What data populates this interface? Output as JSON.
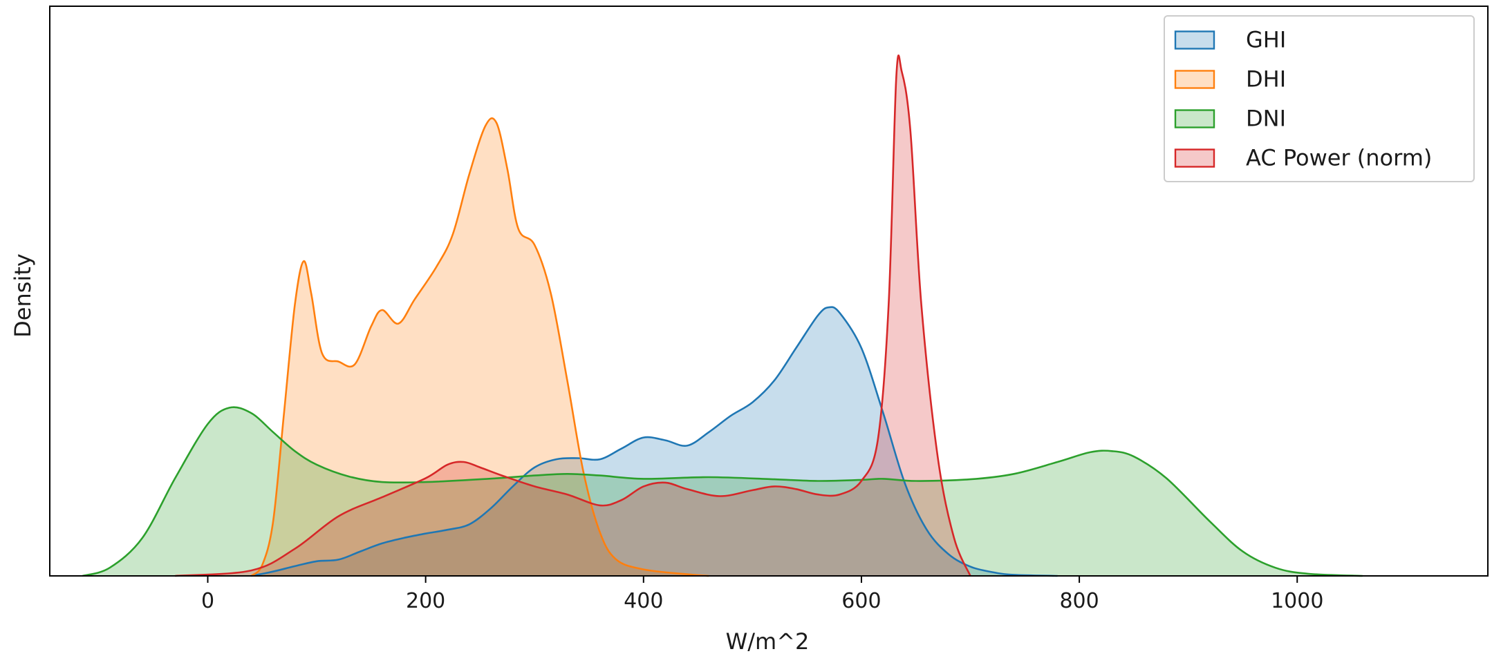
{
  "chart_data": {
    "type": "area",
    "subtype": "kde",
    "title": "",
    "xlabel": "W/m^2",
    "ylabel": "Density",
    "xlim": [
      -145,
      1175
    ],
    "ylim": [
      0,
      1.05
    ],
    "x_ticks": [
      0,
      200,
      400,
      600,
      800,
      1000
    ],
    "x_tick_labels": [
      "0",
      "200",
      "400",
      "600",
      "800",
      "1000"
    ],
    "y_ticks_visible": false,
    "grid": false,
    "legend_position": "top-right",
    "fill_alpha": 0.25,
    "series": [
      {
        "name": "GHI",
        "color": "#1f77b4",
        "points": [
          [
            40,
            0
          ],
          [
            60,
            0.008
          ],
          [
            80,
            0.018
          ],
          [
            100,
            0.027
          ],
          [
            120,
            0.03
          ],
          [
            140,
            0.045
          ],
          [
            160,
            0.06
          ],
          [
            180,
            0.07
          ],
          [
            200,
            0.078
          ],
          [
            220,
            0.085
          ],
          [
            240,
            0.095
          ],
          [
            260,
            0.125
          ],
          [
            280,
            0.165
          ],
          [
            300,
            0.2
          ],
          [
            320,
            0.215
          ],
          [
            340,
            0.217
          ],
          [
            360,
            0.215
          ],
          [
            380,
            0.235
          ],
          [
            400,
            0.255
          ],
          [
            420,
            0.25
          ],
          [
            440,
            0.24
          ],
          [
            460,
            0.265
          ],
          [
            480,
            0.295
          ],
          [
            500,
            0.32
          ],
          [
            520,
            0.36
          ],
          [
            540,
            0.42
          ],
          [
            560,
            0.48
          ],
          [
            570,
            0.495
          ],
          [
            580,
            0.485
          ],
          [
            600,
            0.42
          ],
          [
            620,
            0.3
          ],
          [
            640,
            0.17
          ],
          [
            660,
            0.085
          ],
          [
            680,
            0.04
          ],
          [
            700,
            0.017
          ],
          [
            720,
            0.007
          ],
          [
            740,
            0.002
          ],
          [
            780,
            0
          ]
        ]
      },
      {
        "name": "DHI",
        "color": "#ff7f0e",
        "points": [
          [
            40,
            0
          ],
          [
            50,
            0.02
          ],
          [
            60,
            0.1
          ],
          [
            70,
            0.3
          ],
          [
            80,
            0.5
          ],
          [
            88,
            0.58
          ],
          [
            95,
            0.52
          ],
          [
            105,
            0.41
          ],
          [
            120,
            0.395
          ],
          [
            135,
            0.39
          ],
          [
            150,
            0.46
          ],
          [
            160,
            0.49
          ],
          [
            175,
            0.465
          ],
          [
            190,
            0.51
          ],
          [
            210,
            0.57
          ],
          [
            225,
            0.63
          ],
          [
            240,
            0.74
          ],
          [
            255,
            0.83
          ],
          [
            265,
            0.835
          ],
          [
            275,
            0.75
          ],
          [
            285,
            0.64
          ],
          [
            300,
            0.61
          ],
          [
            315,
            0.52
          ],
          [
            330,
            0.36
          ],
          [
            345,
            0.19
          ],
          [
            360,
            0.08
          ],
          [
            375,
            0.03
          ],
          [
            400,
            0.012
          ],
          [
            440,
            0.003
          ],
          [
            460,
            0
          ]
        ]
      },
      {
        "name": "DNI",
        "color": "#2ca02c",
        "points": [
          [
            -115,
            0
          ],
          [
            -90,
            0.015
          ],
          [
            -60,
            0.07
          ],
          [
            -30,
            0.18
          ],
          [
            0,
            0.28
          ],
          [
            20,
            0.31
          ],
          [
            40,
            0.3
          ],
          [
            60,
            0.265
          ],
          [
            80,
            0.23
          ],
          [
            100,
            0.205
          ],
          [
            130,
            0.183
          ],
          [
            160,
            0.173
          ],
          [
            200,
            0.173
          ],
          [
            250,
            0.178
          ],
          [
            300,
            0.185
          ],
          [
            330,
            0.188
          ],
          [
            360,
            0.185
          ],
          [
            400,
            0.179
          ],
          [
            460,
            0.182
          ],
          [
            520,
            0.178
          ],
          [
            560,
            0.175
          ],
          [
            600,
            0.177
          ],
          [
            620,
            0.179
          ],
          [
            650,
            0.175
          ],
          [
            700,
            0.178
          ],
          [
            740,
            0.188
          ],
          [
            780,
            0.21
          ],
          [
            810,
            0.228
          ],
          [
            830,
            0.23
          ],
          [
            850,
            0.22
          ],
          [
            880,
            0.18
          ],
          [
            920,
            0.1
          ],
          [
            950,
            0.045
          ],
          [
            980,
            0.015
          ],
          [
            1010,
            0.004
          ],
          [
            1060,
            0
          ]
        ]
      },
      {
        "name": "AC Power (norm)",
        "color": "#d62728",
        "points": [
          [
            -30,
            0
          ],
          [
            40,
            0.01
          ],
          [
            80,
            0.05
          ],
          [
            120,
            0.11
          ],
          [
            160,
            0.145
          ],
          [
            200,
            0.18
          ],
          [
            220,
            0.205
          ],
          [
            235,
            0.21
          ],
          [
            250,
            0.2
          ],
          [
            270,
            0.185
          ],
          [
            300,
            0.165
          ],
          [
            330,
            0.15
          ],
          [
            360,
            0.13
          ],
          [
            380,
            0.14
          ],
          [
            400,
            0.165
          ],
          [
            420,
            0.172
          ],
          [
            440,
            0.16
          ],
          [
            470,
            0.147
          ],
          [
            500,
            0.158
          ],
          [
            520,
            0.165
          ],
          [
            540,
            0.16
          ],
          [
            560,
            0.15
          ],
          [
            580,
            0.15
          ],
          [
            600,
            0.175
          ],
          [
            615,
            0.25
          ],
          [
            625,
            0.5
          ],
          [
            632,
            0.92
          ],
          [
            637,
            0.93
          ],
          [
            645,
            0.82
          ],
          [
            655,
            0.5
          ],
          [
            670,
            0.22
          ],
          [
            685,
            0.07
          ],
          [
            700,
            0
          ]
        ]
      }
    ]
  }
}
